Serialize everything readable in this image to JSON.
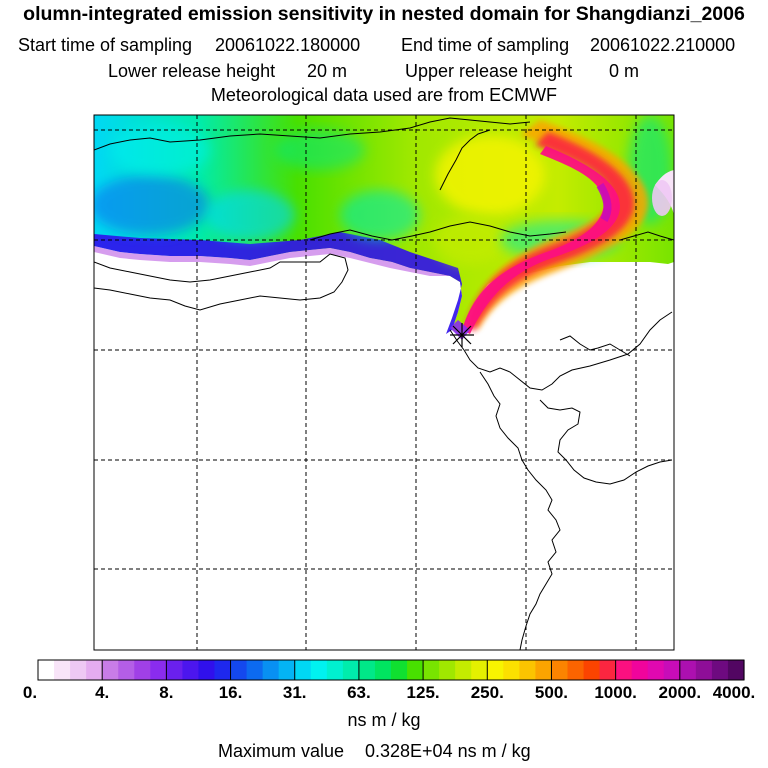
{
  "header": {
    "title": "olumn-integrated emission sensitivity in nested domain for Shangdianzi_2006",
    "start_label": "Start time of sampling",
    "start_value": "20061022.180000",
    "end_label": "End time of sampling",
    "end_value": "20061022.210000",
    "lower_label": "Lower release height",
    "lower_value": "20 m",
    "upper_label": "Upper release height",
    "upper_value": "0 m",
    "met_line": "Meteorological data used are from ECMWF"
  },
  "colorbar": {
    "ticks": [
      "0.",
      "4.",
      "8.",
      "16.",
      "31.",
      "63.",
      "125.",
      "250.",
      "500.",
      "1000.",
      "2000.",
      "4000."
    ],
    "colors": [
      "#ffffff",
      "#f8e4f8",
      "#eec8f4",
      "#e4acf0",
      "#c87ce8",
      "#b45ee6",
      "#a040e6",
      "#8a2cee",
      "#6a20ee",
      "#4c16ee",
      "#3010ec",
      "#1e28ee",
      "#1448ee",
      "#0c6af0",
      "#0890f2",
      "#04b4f4",
      "#00d8f4",
      "#00f2f0",
      "#00f0d0",
      "#00ecac",
      "#00e888",
      "#00e460",
      "#10e030",
      "#48e000",
      "#78e400",
      "#a0e800",
      "#c4ec00",
      "#e4f000",
      "#f8f400",
      "#fce000",
      "#fcc400",
      "#fca400",
      "#fc8400",
      "#fc6400",
      "#fc4400",
      "#fc2640",
      "#fc1080",
      "#f0049c",
      "#e008b0",
      "#c80cb8",
      "#ac10b0",
      "#8e0e98",
      "#6e0a80",
      "#520662"
    ],
    "unit_label": "ns m / kg",
    "max_label": "Maximum value",
    "max_value": "0.328E+04 ns m / kg"
  },
  "map": {
    "receptor_marker": "Shangdianzi receptor star",
    "colors": {
      "land_border": "#000000",
      "gridline": "#000000"
    }
  }
}
